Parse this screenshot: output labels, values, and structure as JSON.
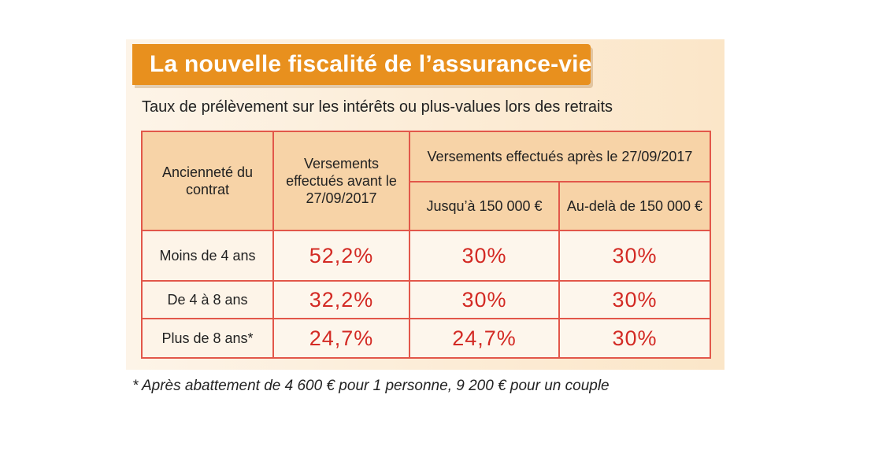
{
  "title": "La nouvelle fiscalité de l’assurance-vie",
  "subtitle": "Taux de prélèvement sur les intérêts ou plus-values lors des retraits",
  "table": {
    "col_seniority_label": "Ancienneté du contrat",
    "col_before_label": "Versements effectués avant le 27/09/2017",
    "col_after_label": "Versements effectués après le 27/09/2017",
    "col_after_upto_label": "Jusqu’à 150 000 €",
    "col_after_beyond_label": "Au-delà de 150 000 €",
    "rows": [
      {
        "label": "Moins de 4 ans",
        "before": "52,2%",
        "upto": "30%",
        "beyond": "30%"
      },
      {
        "label": "De 4 à 8 ans",
        "before": "32,2%",
        "upto": "30%",
        "beyond": "30%"
      },
      {
        "label": "Plus de 8 ans*",
        "before": "24,7%",
        "upto": "24,7%",
        "beyond": "30%"
      }
    ]
  },
  "footnote": "* Après abattement de 4 600 € pour 1 personne, 9 200 € pour un couple",
  "colors": {
    "banner": "#e8901e",
    "border": "#e2574a",
    "value_text": "#d32a24",
    "header_fill": "#f7d3a7"
  }
}
